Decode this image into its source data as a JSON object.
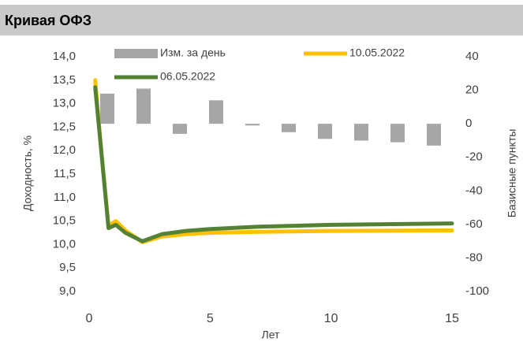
{
  "chart_data": {
    "type": "combo",
    "title": "Кривая ОФЗ",
    "ylabel": "Доходность, %",
    "y2label": "Базисные пункты",
    "xlabel": "Лет",
    "xlim": [
      0,
      15
    ],
    "xticks": [
      0,
      5,
      10,
      15
    ],
    "ylim": [
      9,
      14
    ],
    "yticks": [
      {
        "value": 9,
        "label": "9,0"
      },
      {
        "value": 9.5,
        "label": "9,5"
      },
      {
        "value": 10,
        "label": "10,0"
      },
      {
        "value": 10.5,
        "label": "10,5"
      },
      {
        "value": 11,
        "label": "11,0"
      },
      {
        "value": 11.5,
        "label": "11,5"
      },
      {
        "value": 12,
        "label": "12,0"
      },
      {
        "value": 12.5,
        "label": "12,5"
      },
      {
        "value": 13,
        "label": "13,0"
      },
      {
        "value": 13.5,
        "label": "13,5"
      },
      {
        "value": 14,
        "label": "14,0"
      }
    ],
    "y2lim": [
      -100,
      40
    ],
    "y2ticks": [
      -100,
      -80,
      -60,
      -40,
      -20,
      0,
      20,
      40
    ],
    "series": [
      {
        "name": "Изм. за день",
        "type": "bar",
        "axis": "y2",
        "color": "#a6a6a6",
        "x": [
          0.75,
          2.25,
          3.75,
          5.25,
          6.75,
          8.25,
          9.75,
          11.25,
          12.75,
          14.25
        ],
        "values": [
          18,
          21,
          -6,
          14,
          -1,
          -5,
          -9,
          -10,
          -11,
          -13
        ]
      },
      {
        "name": "10.05.2022",
        "type": "line",
        "color": "#ffc000",
        "x": [
          0.25,
          0.5,
          0.8,
          1.1,
          1.5,
          2.2,
          3,
          4,
          5,
          7,
          10,
          15
        ],
        "values": [
          13.5,
          12.0,
          10.4,
          10.5,
          10.3,
          10.05,
          10.17,
          10.22,
          10.25,
          10.27,
          10.29,
          10.3
        ]
      },
      {
        "name": "06.05.2022",
        "type": "line",
        "color": "#548235",
        "x": [
          0.25,
          0.5,
          0.8,
          1.1,
          1.5,
          2.2,
          3,
          4,
          5,
          7,
          10,
          15
        ],
        "values": [
          13.35,
          12.0,
          10.35,
          10.42,
          10.25,
          10.07,
          10.22,
          10.29,
          10.33,
          10.38,
          10.42,
          10.45
        ]
      }
    ]
  }
}
